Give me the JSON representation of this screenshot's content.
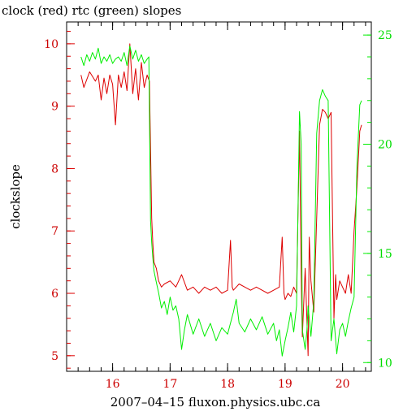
{
  "chart_data": {
    "type": "line",
    "title": "clock (red) rtc (green) slopes",
    "xlabel": "2007–04–15 fluxon.physics.ubc.ca",
    "ylabel": "clockslope",
    "xlim": [
      15.2,
      20.5
    ],
    "ylim_left": [
      4.75,
      10.35
    ],
    "ylim_right": [
      9.6,
      25.6
    ],
    "x_ticks": [
      "16",
      "17",
      "18",
      "19",
      "20"
    ],
    "y_ticks_left": [
      "5",
      "6",
      "7",
      "8",
      "9",
      "10"
    ],
    "y_ticks_right": [
      "10",
      "15",
      "20",
      "25"
    ],
    "colors": {
      "clock": "#dd0000",
      "rtc": "#00ee00"
    },
    "series": [
      {
        "axis": "left",
        "x": [
          15.45,
          15.5,
          15.6,
          15.7,
          15.75,
          15.8,
          15.85,
          15.9,
          15.95,
          16.0,
          16.05,
          16.1,
          16.15,
          16.2,
          16.25,
          16.3,
          16.35,
          16.4,
          16.45,
          16.5,
          16.55,
          16.6,
          16.64,
          16.68,
          16.7,
          16.72,
          16.76,
          16.8,
          16.85,
          16.9,
          17.0,
          17.1,
          17.2,
          17.3,
          17.4,
          17.5,
          17.6,
          17.7,
          17.8,
          17.9,
          18.0,
          18.05,
          18.08,
          18.1,
          18.2,
          18.3,
          18.4,
          18.5,
          18.6,
          18.7,
          18.8,
          18.9,
          18.95,
          18.98,
          19.0,
          19.05,
          19.1,
          19.15,
          19.2,
          19.25,
          19.28,
          19.3,
          19.35,
          19.4,
          19.42,
          19.45,
          19.5,
          19.6,
          19.65,
          19.7,
          19.75,
          19.8,
          19.85,
          19.88,
          19.9,
          19.95,
          20.0,
          20.05,
          20.1,
          20.15,
          20.2,
          20.25,
          20.3,
          20.33
        ],
        "y": [
          9.5,
          9.3,
          9.55,
          9.4,
          9.5,
          9.1,
          9.45,
          9.2,
          9.5,
          9.35,
          8.7,
          9.5,
          9.3,
          9.55,
          9.25,
          10.0,
          9.2,
          9.6,
          9.1,
          9.7,
          9.3,
          9.5,
          9.4,
          7.2,
          6.8,
          6.5,
          6.4,
          6.2,
          6.1,
          6.15,
          6.2,
          6.1,
          6.3,
          6.05,
          6.1,
          6.0,
          6.1,
          6.05,
          6.1,
          6.0,
          6.05,
          6.85,
          6.1,
          6.05,
          6.15,
          6.1,
          6.05,
          6.1,
          6.05,
          6.0,
          6.05,
          6.1,
          6.9,
          6.0,
          5.9,
          6.0,
          5.95,
          6.1,
          6.0,
          8.6,
          6.3,
          5.3,
          6.4,
          5.0,
          6.9,
          6.2,
          5.7,
          8.7,
          8.95,
          8.9,
          8.8,
          8.9,
          5.6,
          6.3,
          5.9,
          6.2,
          6.1,
          6.0,
          6.3,
          6.0,
          7.0,
          7.7,
          8.6,
          8.7
        ]
      },
      {
        "axis": "right",
        "x": [
          15.45,
          15.5,
          15.55,
          15.6,
          15.65,
          15.7,
          15.75,
          15.8,
          15.85,
          15.9,
          15.95,
          16.0,
          16.05,
          16.1,
          16.15,
          16.2,
          16.25,
          16.3,
          16.35,
          16.4,
          16.45,
          16.5,
          16.55,
          16.6,
          16.63,
          16.66,
          16.68,
          16.7,
          16.72,
          16.75,
          16.8,
          16.85,
          16.9,
          16.95,
          17.0,
          17.05,
          17.1,
          17.15,
          17.2,
          17.25,
          17.3,
          17.4,
          17.5,
          17.6,
          17.7,
          17.8,
          17.9,
          18.0,
          18.1,
          18.15,
          18.2,
          18.3,
          18.4,
          18.5,
          18.6,
          18.7,
          18.8,
          18.85,
          18.9,
          18.95,
          19.0,
          19.05,
          19.1,
          19.15,
          19.2,
          19.25,
          19.28,
          19.3,
          19.35,
          19.38,
          19.4,
          19.45,
          19.5,
          19.55,
          19.6,
          19.65,
          19.7,
          19.75,
          19.8,
          19.85,
          19.9,
          19.95,
          20.0,
          20.05,
          20.1,
          20.15,
          20.2,
          20.25,
          20.3,
          20.33
        ],
        "y": [
          24.0,
          23.6,
          24.1,
          23.8,
          24.2,
          23.9,
          24.4,
          23.7,
          24.0,
          23.8,
          24.1,
          23.7,
          23.9,
          24.0,
          23.8,
          24.2,
          23.6,
          24.5,
          23.9,
          24.3,
          23.8,
          24.1,
          23.7,
          23.9,
          24.0,
          16.5,
          15.5,
          14.8,
          14.2,
          13.8,
          13.2,
          12.5,
          12.8,
          12.2,
          13.0,
          12.4,
          12.6,
          12.0,
          10.6,
          11.5,
          12.2,
          11.3,
          12.0,
          11.2,
          11.8,
          11.0,
          11.6,
          11.3,
          12.3,
          12.9,
          11.8,
          11.4,
          12.0,
          11.5,
          12.1,
          11.3,
          11.8,
          11.0,
          11.5,
          10.3,
          11.0,
          11.6,
          12.3,
          11.4,
          12.6,
          21.5,
          20.0,
          11.5,
          10.6,
          11.5,
          12.6,
          11.2,
          12.8,
          20.5,
          22.0,
          22.5,
          22.2,
          22.0,
          11.0,
          12.0,
          10.4,
          11.5,
          11.8,
          11.2,
          11.9,
          12.5,
          13.0,
          19.0,
          21.8,
          22.0
        ]
      }
    ]
  }
}
